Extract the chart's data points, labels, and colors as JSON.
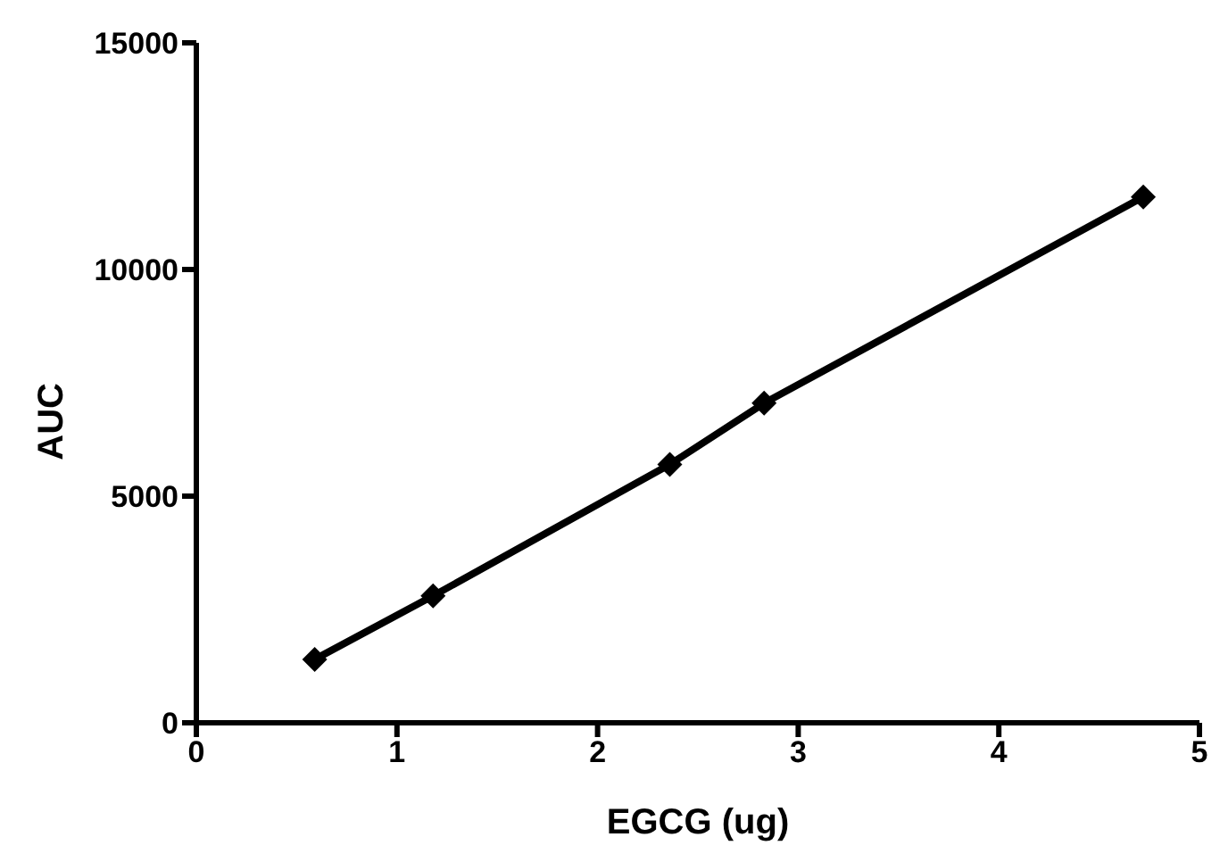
{
  "chart_data": {
    "type": "line",
    "xlabel": "EGCG (ug)",
    "ylabel": "AUC",
    "x": [
      0.59,
      1.18,
      2.36,
      2.83,
      4.72
    ],
    "series": [
      {
        "color": "#000000",
        "values": [
          1400,
          2800,
          5700,
          7050,
          11600
        ]
      }
    ],
    "xlim": [
      0,
      5
    ],
    "xticks": [
      0,
      1,
      2,
      3,
      4,
      5
    ],
    "ylim": [
      0,
      15000
    ],
    "yticks": [
      0,
      5000,
      10000,
      15000
    ],
    "grid": false,
    "legend": false,
    "marker": "diamond",
    "line_style": "solid"
  }
}
